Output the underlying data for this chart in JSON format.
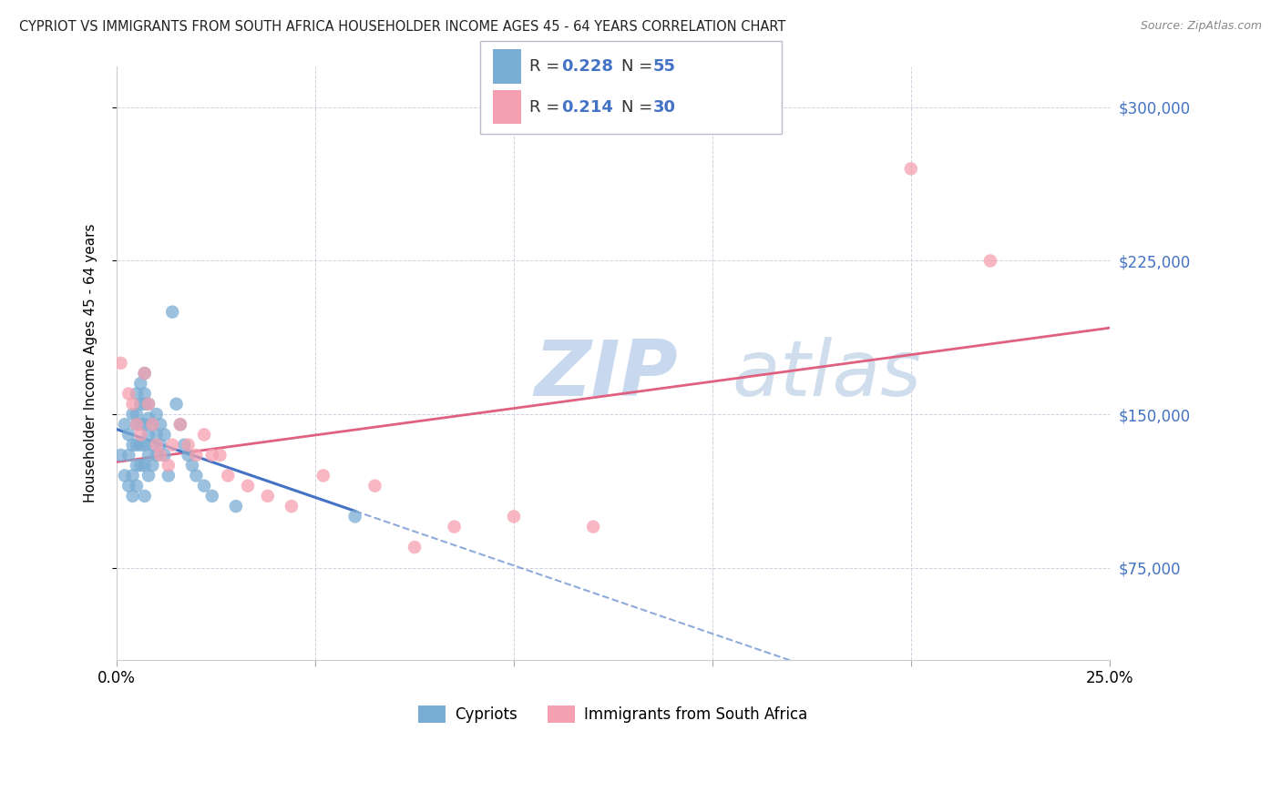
{
  "title": "CYPRIOT VS IMMIGRANTS FROM SOUTH AFRICA HOUSEHOLDER INCOME AGES 45 - 64 YEARS CORRELATION CHART",
  "source": "Source: ZipAtlas.com",
  "ylabel": "Householder Income Ages 45 - 64 years",
  "xlim": [
    0.0,
    0.25
  ],
  "ylim": [
    30000,
    320000
  ],
  "yticks": [
    75000,
    150000,
    225000,
    300000
  ],
  "ytick_labels": [
    "$75,000",
    "$150,000",
    "$225,000",
    "$300,000"
  ],
  "xticks": [
    0.0,
    0.05,
    0.1,
    0.15,
    0.2,
    0.25
  ],
  "xtick_labels": [
    "0.0%",
    "",
    "",
    "",
    "",
    "25.0%"
  ],
  "legend_R1": "0.228",
  "legend_N1": "55",
  "legend_R2": "0.214",
  "legend_N2": "30",
  "blue_color": "#7aadd4",
  "pink_color": "#f5a0b0",
  "line_blue_color": "#4472c4",
  "line_pink_color": "#e06080",
  "text_blue_color": "#4472c4",
  "watermark_zip": "ZIP",
  "watermark_atlas": "atlas",
  "watermark_color": "#c8d8ee",
  "background_color": "#FFFFFF",
  "grid_color": "#d0d0e0",
  "cypriot_x": [
    0.001,
    0.002,
    0.002,
    0.003,
    0.003,
    0.003,
    0.004,
    0.004,
    0.004,
    0.004,
    0.005,
    0.005,
    0.005,
    0.005,
    0.005,
    0.005,
    0.006,
    0.006,
    0.006,
    0.006,
    0.006,
    0.007,
    0.007,
    0.007,
    0.007,
    0.007,
    0.007,
    0.007,
    0.008,
    0.008,
    0.008,
    0.008,
    0.008,
    0.009,
    0.009,
    0.009,
    0.01,
    0.01,
    0.01,
    0.011,
    0.011,
    0.012,
    0.012,
    0.013,
    0.014,
    0.015,
    0.016,
    0.017,
    0.018,
    0.019,
    0.02,
    0.022,
    0.024,
    0.03,
    0.06
  ],
  "cypriot_y": [
    130000,
    145000,
    120000,
    140000,
    130000,
    115000,
    150000,
    135000,
    120000,
    110000,
    160000,
    150000,
    145000,
    135000,
    125000,
    115000,
    165000,
    155000,
    145000,
    135000,
    125000,
    170000,
    160000,
    155000,
    145000,
    135000,
    125000,
    110000,
    155000,
    148000,
    140000,
    130000,
    120000,
    145000,
    135000,
    125000,
    150000,
    140000,
    130000,
    145000,
    135000,
    140000,
    130000,
    120000,
    200000,
    155000,
    145000,
    135000,
    130000,
    125000,
    120000,
    115000,
    110000,
    105000,
    100000
  ],
  "sa_x": [
    0.001,
    0.003,
    0.004,
    0.005,
    0.006,
    0.007,
    0.008,
    0.009,
    0.01,
    0.011,
    0.013,
    0.014,
    0.016,
    0.018,
    0.02,
    0.022,
    0.024,
    0.026,
    0.028,
    0.033,
    0.038,
    0.044,
    0.052,
    0.065,
    0.075,
    0.085,
    0.1,
    0.12,
    0.2,
    0.22
  ],
  "sa_y": [
    175000,
    160000,
    155000,
    145000,
    140000,
    170000,
    155000,
    145000,
    135000,
    130000,
    125000,
    135000,
    145000,
    135000,
    130000,
    140000,
    130000,
    130000,
    120000,
    115000,
    110000,
    105000,
    120000,
    115000,
    85000,
    95000,
    100000,
    95000,
    270000,
    225000
  ],
  "blue_line_solid_xlim": [
    0.0,
    0.06
  ],
  "blue_line_dash_xlim": [
    0.06,
    0.25
  ]
}
